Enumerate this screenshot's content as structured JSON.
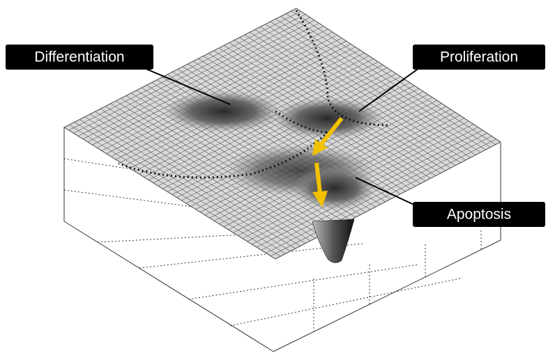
{
  "labels": [
    "Differentiation",
    "Proliferation",
    "Apoptosis"
  ]
}
